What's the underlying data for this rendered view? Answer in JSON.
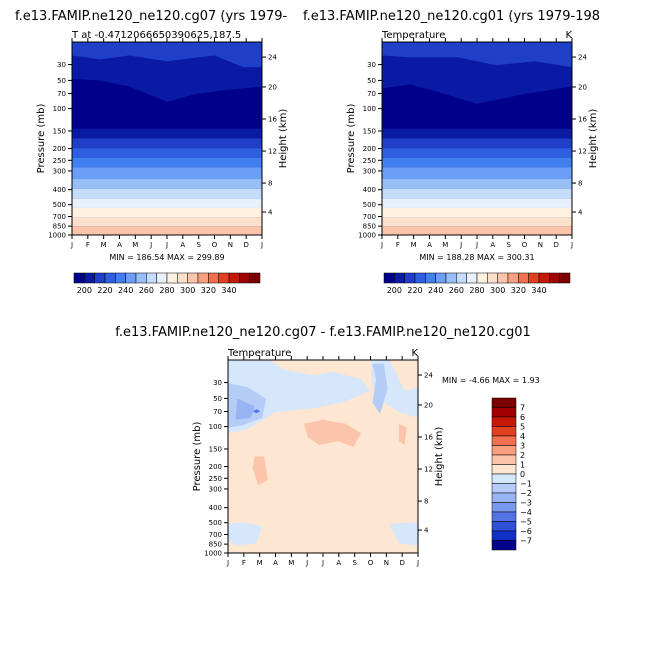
{
  "panels": [
    {
      "title": "f.e13.FAMIP.ne120_ne120.cg07 (yrs 1979-",
      "left_label": "T at -0.4712066650390625,187.5",
      "right_label": "",
      "minmax": "MIN = 186.54  MAX = 299.89"
    },
    {
      "title": "f.e13.FAMIP.ne120_ne120.cg01 (yrs 1979-198",
      "left_label": "Temperature",
      "right_label": "K",
      "minmax": "MIN = 188.28  MAX = 300.31"
    },
    {
      "title": "f.e13.FAMIP.ne120_ne120.cg07 - f.e13.FAMIP.ne120_ne120.cg01",
      "left_label": "Temperature",
      "right_label": "K",
      "minmax": "MIN =   -4.66 MAX =    1.93"
    }
  ],
  "chart_data": [
    {
      "type": "heatmap",
      "title": "f.e13.FAMIP.ne120_ne120.cg07 (yrs 1979-",
      "xlabel": "",
      "ylabel": "Pressure (mb)",
      "y2label": "Height (km)",
      "x_ticks": [
        "J",
        "F",
        "M",
        "A",
        "M",
        "J",
        "J",
        "A",
        "S",
        "O",
        "N",
        "D",
        "J"
      ],
      "y_ticks": [
        "30",
        "50",
        "70",
        "100",
        "150",
        "200",
        "250",
        "300",
        "400",
        "500",
        "700",
        "850",
        "1000"
      ],
      "y2_ticks": [
        "24",
        "20",
        "16",
        "12",
        "8",
        "4"
      ],
      "ylim": [
        1000,
        25
      ],
      "min": 186.54,
      "max": 299.89
    },
    {
      "type": "heatmap",
      "title": "f.e13.FAMIP.ne120_ne120.cg01 (yrs 1979-198",
      "xlabel": "",
      "ylabel": "Pressure (mb)",
      "y2label": "Height (km)",
      "x_ticks": [
        "J",
        "F",
        "M",
        "A",
        "M",
        "J",
        "J",
        "A",
        "S",
        "O",
        "N",
        "D",
        "J"
      ],
      "y_ticks": [
        "30",
        "50",
        "70",
        "100",
        "150",
        "200",
        "250",
        "300",
        "400",
        "500",
        "700",
        "850",
        "1000"
      ],
      "y2_ticks": [
        "24",
        "20",
        "16",
        "12",
        "8",
        "4"
      ],
      "ylim": [
        1000,
        25
      ],
      "min": 188.28,
      "max": 300.31
    },
    {
      "type": "heatmap",
      "title": "f.e13.FAMIP.ne120_ne120.cg07 - f.e13.FAMIP.ne120_ne120.cg01",
      "xlabel": "",
      "ylabel": "Pressure (mb)",
      "y2label": "Height (km)",
      "x_ticks": [
        "J",
        "F",
        "M",
        "A",
        "M",
        "J",
        "J",
        "A",
        "S",
        "O",
        "N",
        "D",
        "J"
      ],
      "y_ticks": [
        "30",
        "50",
        "70",
        "100",
        "150",
        "200",
        "250",
        "300",
        "400",
        "500",
        "700",
        "850",
        "1000"
      ],
      "y2_ticks": [
        "24",
        "20",
        "16",
        "12",
        "8",
        "4"
      ],
      "ylim": [
        1000,
        25
      ],
      "min": -4.66,
      "max": 1.93
    }
  ],
  "colorbar_abs": {
    "labels": [
      "200",
      "220",
      "240",
      "260",
      "280",
      "300",
      "320",
      "340"
    ],
    "colors": [
      "#00008b",
      "#0a1aa5",
      "#1f3fc9",
      "#2f5fe0",
      "#3f7ff0",
      "#6a9ff5",
      "#98bff8",
      "#c6dcfb",
      "#e8f0fb",
      "#fff0e0",
      "#fde0cc",
      "#fcc4aa",
      "#f9a080",
      "#f07050",
      "#e04020",
      "#c41808",
      "#a00000",
      "#7c0000"
    ]
  },
  "colorbar_diff": {
    "labels": [
      "7",
      "6",
      "5",
      "4",
      "3",
      "2",
      "1",
      "0",
      "−1",
      "−2",
      "−3",
      "−4",
      "−5",
      "−6",
      "−7"
    ],
    "colors": [
      "#7c0000",
      "#a00000",
      "#c41808",
      "#e04020",
      "#f07050",
      "#f9a080",
      "#fcc4aa",
      "#fde6d2",
      "#d6e6fb",
      "#b4ccf6",
      "#98b4f2",
      "#7898ee",
      "#5474e6",
      "#2f50d8",
      "#1030c8",
      "#00008b"
    ]
  },
  "colors": {
    "abs_bands": [
      "#00008b",
      "#0a1aa5",
      "#1f3fc9",
      "#2f5fe0",
      "#3f7ff0",
      "#6a9ff5",
      "#98bff8",
      "#c6dcfb",
      "#e8f0fb",
      "#fff0e0",
      "#fde0cc",
      "#fcc4aa"
    ],
    "diff_bg": "#fde6d2",
    "diff_neg1": "#d6e6fb",
    "diff_neg2": "#b4ccf6",
    "diff_neg3": "#98b4f2",
    "diff_neg5": "#5474e6",
    "diff_pos1": "#fcc4aa",
    "diff_pos2": "#f9a080"
  }
}
